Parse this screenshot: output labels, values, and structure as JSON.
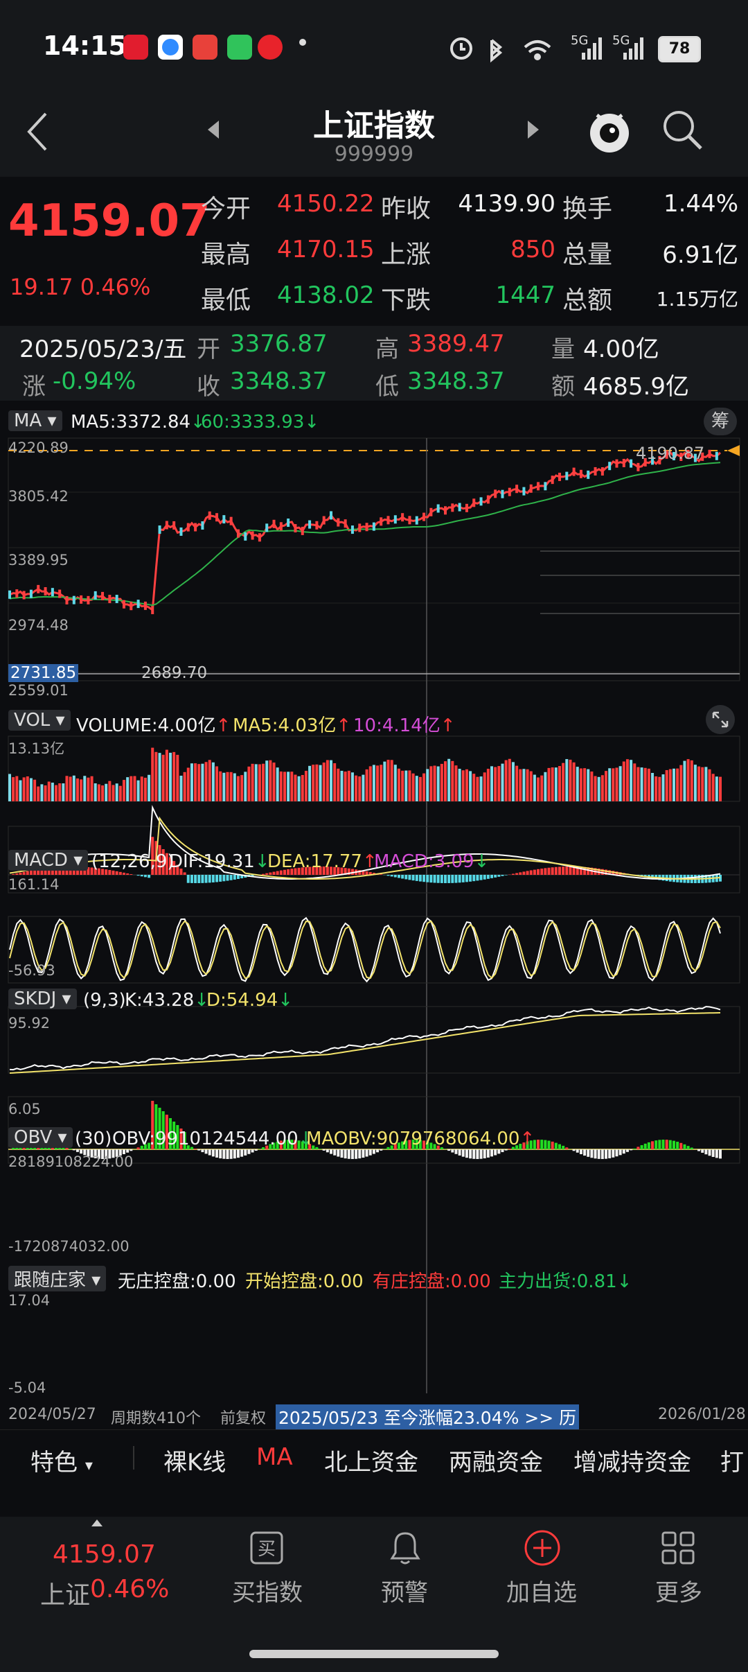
{
  "status_bar": {
    "time": "14:15",
    "battery": "78",
    "signal": [
      "5G",
      "5G"
    ]
  },
  "header": {
    "title": "上证指数",
    "code": "999999"
  },
  "quote": {
    "price": "4159.07",
    "change": "19.17 0.46%",
    "rows": [
      [
        {
          "label": "今开",
          "value": "4150.22",
          "color": "red"
        },
        {
          "label": "昨收",
          "value": "4139.90",
          "color": "white"
        },
        {
          "label": "换手",
          "value": "1.44%",
          "color": "white"
        }
      ],
      [
        {
          "label": "最高",
          "value": "4170.15",
          "color": "red"
        },
        {
          "label": "上涨",
          "value": "850",
          "color": "red"
        },
        {
          "label": "总量",
          "value": "6.91亿",
          "color": "white"
        }
      ],
      [
        {
          "label": "最低",
          "value": "4138.02",
          "color": "green"
        },
        {
          "label": "下跌",
          "value": "1447",
          "color": "green"
        },
        {
          "label": "总额",
          "value": "1.15万亿",
          "color": "white"
        }
      ]
    ]
  },
  "day_detail": {
    "date": "2025/05/23/五",
    "open_label": "开",
    "open": "3376.87",
    "high_label": "高",
    "high": "3389.47",
    "vol_label": "量",
    "vol": "4.00亿",
    "chg_label": "涨",
    "chg": "-0.94%",
    "close_label": "收",
    "close": "3348.37",
    "low_label": "低",
    "low": "3348.37",
    "amt_label": "额",
    "amt": "4685.9亿"
  },
  "main_chart": {
    "indicator": "MA",
    "ma5": "MA5:3372.84",
    "ma60": "60:3333.93",
    "chip_button": "筹",
    "y_labels": [
      "4220.89",
      "3805.42",
      "3389.95",
      "2974.48",
      "2559.01"
    ],
    "last_price_tag": "4190.87",
    "cursor_price": "2731.85",
    "low_mark": "2689.70"
  },
  "vol_chart": {
    "indicator": "VOL",
    "volume": "VOLUME:4.00亿",
    "ma5": "MA5:4.03亿",
    "ma10": "10:4.14亿",
    "ymax": "13.13亿"
  },
  "macd_chart": {
    "indicator": "MACD",
    "params": "(12,26,9)",
    "dif": "DIF:19.31",
    "dea": "DEA:17.77",
    "macd": "MACD:3.09",
    "ymax": "161.14",
    "ymin": "-56.93"
  },
  "skdj_chart": {
    "indicator": "SKDJ",
    "params": "(9,3)",
    "k": "K:43.28",
    "d": "D:54.94",
    "ymax": "95.92",
    "ymin": "6.05"
  },
  "obv_chart": {
    "indicator": "OBV",
    "params": "(30)",
    "obv": "OBV:9910124544.00",
    "maobv": "MAOBV:9079768064.00",
    "ymax": "28189108224.00",
    "ymin": "-1720874032.00"
  },
  "dealer_chart": {
    "indicator": "跟随庄家",
    "a": "无庄控盘:0.00",
    "b": "开始控盘:0.00",
    "c": "有庄控盘:0.00",
    "d": "主力出货:0.81",
    "ymax": "17.04",
    "ymin": "-5.04"
  },
  "footer_info": {
    "start": "2024/05/27",
    "periods": "周期数410个",
    "adjust": "前复权",
    "range": "2025/05/23 至今涨幅23.04% >> 历",
    "end": "2026/01/28"
  },
  "tabs": [
    "特色",
    "裸K线",
    "MA",
    "北上资金",
    "两融资金",
    "增减持资金",
    "打榜"
  ],
  "bottom_nav": {
    "index_price": "4159.07",
    "index_name": "上证",
    "index_change": "0.46%",
    "items": [
      {
        "label": "买指数",
        "icon": "buy-icon"
      },
      {
        "label": "预警",
        "icon": "bell-icon"
      },
      {
        "label": "加自选",
        "icon": "plus-circle-icon"
      },
      {
        "label": "更多",
        "icon": "grid-icon"
      }
    ]
  },
  "colors": {
    "up": "#ff3b3b",
    "down": "#22c55e",
    "bg": "#0c0d10",
    "accent_orange": "#f5a623"
  }
}
